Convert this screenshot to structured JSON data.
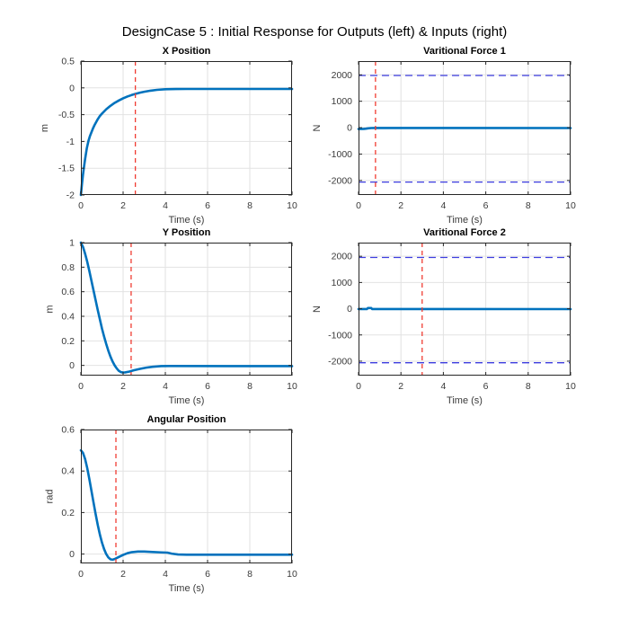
{
  "figure": {
    "title": "DesignCase 5 : Initial Response for Outputs (left) & Inputs (right)",
    "background": "#ffffff"
  },
  "colors": {
    "curve": "#0072BD",
    "limit_line": "#3D3DE0",
    "marker_line": "#F03C32",
    "grid": "#E2E2E2",
    "axis": "#262626",
    "text": "#3A3A3A",
    "title_text": "#000000"
  },
  "chart_data": [
    {
      "key": "x-position",
      "type": "line",
      "title": "X Position",
      "xlabel": "Time (s)",
      "ylabel": "m",
      "xlim": [
        0,
        10
      ],
      "ylim": [
        -2,
        0.5
      ],
      "xticks": [
        0,
        2,
        4,
        6,
        8,
        10
      ],
      "yticks": [
        -2,
        -1.5,
        -1,
        -0.5,
        0,
        0.5
      ],
      "grid": true,
      "marker_vline_x": 2.58,
      "limit_hlines": [],
      "series": [
        {
          "name": "x-position-response",
          "points": [
            [
              0,
              -2
            ],
            [
              0.05,
              -1.8
            ],
            [
              0.1,
              -1.62
            ],
            [
              0.15,
              -1.47
            ],
            [
              0.2,
              -1.33
            ],
            [
              0.28,
              -1.13
            ],
            [
              0.36,
              -0.99
            ],
            [
              0.43,
              -0.9
            ],
            [
              0.5,
              -0.83
            ],
            [
              0.57,
              -0.76
            ],
            [
              0.64,
              -0.7
            ],
            [
              0.71,
              -0.65
            ],
            [
              0.8,
              -0.585
            ],
            [
              0.9,
              -0.525
            ],
            [
              1.0,
              -0.48
            ],
            [
              1.2,
              -0.4
            ],
            [
              1.4,
              -0.335
            ],
            [
              1.6,
              -0.28
            ],
            [
              1.8,
              -0.235
            ],
            [
              2.0,
              -0.195
            ],
            [
              2.2,
              -0.162
            ],
            [
              2.4,
              -0.134
            ],
            [
              2.6,
              -0.11
            ],
            [
              2.8,
              -0.09
            ],
            [
              3.0,
              -0.073
            ],
            [
              3.3,
              -0.052
            ],
            [
              3.6,
              -0.037
            ],
            [
              4.0,
              -0.026
            ],
            [
              4.5,
              -0.021
            ],
            [
              5.0,
              -0.02
            ],
            [
              10,
              -0.02
            ]
          ]
        }
      ]
    },
    {
      "key": "varitional-force-1",
      "type": "line",
      "title": "Varitional Force 1",
      "xlabel": "Time (s)",
      "ylabel": "N",
      "xlim": [
        0,
        10
      ],
      "ylim": [
        -2550,
        2520
      ],
      "xticks": [
        0,
        2,
        4,
        6,
        8,
        10
      ],
      "yticks": [
        -2000,
        -1000,
        0,
        1000,
        2000
      ],
      "grid": true,
      "marker_vline_x": 0.8,
      "limit_hlines": [
        1975,
        -2060
      ],
      "series": [
        {
          "name": "force-1-input",
          "points": [
            [
              0,
              -50
            ],
            [
              0.25,
              -48
            ],
            [
              0.35,
              -38
            ],
            [
              0.45,
              -25
            ],
            [
              0.6,
              -15
            ],
            [
              0.8,
              -12
            ],
            [
              1.5,
              -14
            ],
            [
              10,
              -15
            ]
          ]
        }
      ]
    },
    {
      "key": "y-position",
      "type": "line",
      "title": "Y Position",
      "xlabel": "Time (s)",
      "ylabel": "m",
      "xlim": [
        0,
        10
      ],
      "ylim": [
        -0.083,
        1
      ],
      "xticks": [
        0,
        2,
        4,
        6,
        8,
        10
      ],
      "yticks": [
        0,
        0.2,
        0.4,
        0.6,
        0.8,
        1
      ],
      "grid": true,
      "marker_vline_x": 2.38,
      "limit_hlines": [],
      "series": [
        {
          "name": "y-position-response",
          "points": [
            [
              0,
              1
            ],
            [
              0.1,
              0.965
            ],
            [
              0.2,
              0.91
            ],
            [
              0.3,
              0.845
            ],
            [
              0.4,
              0.77
            ],
            [
              0.5,
              0.69
            ],
            [
              0.6,
              0.61
            ],
            [
              0.7,
              0.53
            ],
            [
              0.8,
              0.45
            ],
            [
              0.9,
              0.375
            ],
            [
              1.0,
              0.3
            ],
            [
              1.1,
              0.235
            ],
            [
              1.2,
              0.175
            ],
            [
              1.3,
              0.12
            ],
            [
              1.4,
              0.072
            ],
            [
              1.5,
              0.032
            ],
            [
              1.6,
              0.0
            ],
            [
              1.7,
              -0.025
            ],
            [
              1.8,
              -0.045
            ],
            [
              1.9,
              -0.055
            ],
            [
              2.0,
              -0.058
            ],
            [
              2.1,
              -0.057
            ],
            [
              2.3,
              -0.05
            ],
            [
              2.5,
              -0.04
            ],
            [
              2.8,
              -0.028
            ],
            [
              3.1,
              -0.018
            ],
            [
              3.4,
              -0.011
            ],
            [
              3.8,
              -0.006
            ],
            [
              4.2,
              -0.005
            ],
            [
              10,
              -0.006
            ]
          ]
        }
      ]
    },
    {
      "key": "varitional-force-2",
      "type": "line",
      "title": "Varitional Force 2",
      "xlabel": "Time (s)",
      "ylabel": "N",
      "xlim": [
        0,
        10
      ],
      "ylim": [
        -2550,
        2520
      ],
      "xticks": [
        0,
        2,
        4,
        6,
        8,
        10
      ],
      "yticks": [
        -2000,
        -1000,
        0,
        1000,
        2000
      ],
      "grid": true,
      "marker_vline_x": 3.0,
      "limit_hlines": [
        1955,
        -2060
      ],
      "series": [
        {
          "name": "force-2-input",
          "points": [
            [
              0,
              -12
            ],
            [
              0.4,
              -12
            ],
            [
              0.44,
              25
            ],
            [
              0.6,
              25
            ],
            [
              0.64,
              -12
            ],
            [
              2,
              -13
            ],
            [
              10,
              -15
            ]
          ]
        }
      ]
    },
    {
      "key": "angular-position",
      "type": "line",
      "title": "Angular Position",
      "xlabel": "Time (s)",
      "ylabel": "rad",
      "xlim": [
        0,
        10
      ],
      "ylim": [
        -0.045,
        0.6
      ],
      "xticks": [
        0,
        2,
        4,
        6,
        8,
        10
      ],
      "yticks": [
        0,
        0.2,
        0.4,
        0.6
      ],
      "grid": true,
      "marker_vline_x": 1.66,
      "limit_hlines": [],
      "series": [
        {
          "name": "angular-position-response",
          "points": [
            [
              0,
              0.5
            ],
            [
              0.1,
              0.487
            ],
            [
              0.2,
              0.458
            ],
            [
              0.3,
              0.415
            ],
            [
              0.4,
              0.362
            ],
            [
              0.5,
              0.305
            ],
            [
              0.6,
              0.248
            ],
            [
              0.7,
              0.192
            ],
            [
              0.8,
              0.14
            ],
            [
              0.9,
              0.094
            ],
            [
              1.0,
              0.055
            ],
            [
              1.1,
              0.024
            ],
            [
              1.2,
              0.0
            ],
            [
              1.3,
              -0.016
            ],
            [
              1.4,
              -0.025
            ],
            [
              1.5,
              -0.027
            ],
            [
              1.6,
              -0.024
            ],
            [
              1.8,
              -0.014
            ],
            [
              2.0,
              -0.004
            ],
            [
              2.2,
              0.004
            ],
            [
              2.4,
              0.009
            ],
            [
              2.7,
              0.012
            ],
            [
              3.0,
              0.012
            ],
            [
              3.4,
              0.01
            ],
            [
              3.8,
              0.008
            ],
            [
              4.1,
              0.007
            ],
            [
              4.3,
              0.002
            ],
            [
              4.6,
              -0.002
            ],
            [
              5.0,
              -0.003
            ],
            [
              10,
              -0.003
            ]
          ]
        }
      ]
    }
  ]
}
